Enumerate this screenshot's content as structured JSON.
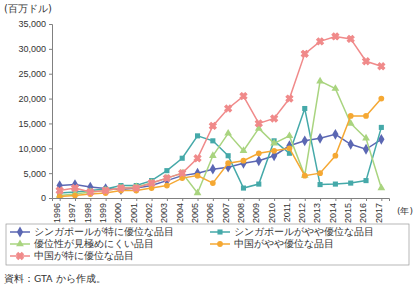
{
  "chart_data": {
    "type": "line",
    "y_label": "(百万ドル)",
    "x_label": "(年)",
    "annotations": [
      "資料：GTA から作成。"
    ],
    "x": [
      1996,
      1997,
      1998,
      1999,
      2000,
      2001,
      2002,
      2003,
      2004,
      2005,
      2006,
      2007,
      2008,
      2009,
      2010,
      2011,
      2012,
      2013,
      2014,
      2015,
      2016,
      2017
    ],
    "xlim": [
      1995.5,
      2017.5
    ],
    "xticks": [
      1996,
      1997,
      1998,
      1999,
      2000,
      2001,
      2002,
      2003,
      2004,
      2005,
      2006,
      2007,
      2008,
      2009,
      2010,
      2011,
      2012,
      2013,
      2014,
      2015,
      2016,
      2017
    ],
    "ylim": [
      0,
      35000
    ],
    "yticks": [
      0,
      {
        "value": 5000,
        "label": "5,000"
      },
      {
        "value": 10000,
        "label": "10,000"
      },
      {
        "value": 15000,
        "label": "15,000"
      },
      {
        "value": 20000,
        "label": "20,000"
      },
      {
        "value": 25000,
        "label": "25,000"
      },
      {
        "value": 30000,
        "label": "30,000"
      },
      {
        "value": 35000,
        "label": "35,000"
      }
    ],
    "grid": false,
    "legend": "bottom",
    "series": [
      {
        "name": "シンガポールが特に優位な品目",
        "color": "#5b67b3",
        "marker": "diamond",
        "values": [
          2500,
          2700,
          2200,
          1900,
          1700,
          2000,
          2500,
          3500,
          4500,
          5000,
          5800,
          6200,
          7000,
          7500,
          8500,
          10500,
          11500,
          12000,
          12800,
          10800,
          9800,
          11800
        ]
      },
      {
        "name": "シンガポールがやや優位な品目",
        "color": "#45a9a9",
        "marker": "square",
        "values": [
          1000,
          1200,
          1500,
          1800,
          2500,
          2500,
          3500,
          5500,
          8000,
          12500,
          11500,
          8500,
          2000,
          2800,
          11500,
          9000,
          18000,
          2700,
          2800,
          3000,
          3500,
          14200
        ]
      },
      {
        "name": "優位性が見極めにくい品目",
        "color": "#a9d47f",
        "marker": "triangle",
        "values": [
          500,
          800,
          1200,
          1500,
          2000,
          2200,
          3000,
          4000,
          5000,
          1000,
          8500,
          13000,
          9500,
          14000,
          11000,
          12500,
          4500,
          23500,
          22000,
          15000,
          12000,
          2000
        ]
      },
      {
        "name": "中国がやや優位な品目",
        "color": "#f5a833",
        "marker": "circle",
        "values": [
          300,
          500,
          800,
          1000,
          1500,
          1500,
          2000,
          2500,
          4000,
          4500,
          3000,
          7000,
          7500,
          9000,
          9500,
          10000,
          4500,
          5000,
          8500,
          16500,
          16500,
          20000
        ]
      },
      {
        "name": "中国が特に優位な品目",
        "color": "#f08a8a",
        "marker": "x",
        "values": [
          1500,
          2000,
          1200,
          1500,
          2000,
          2000,
          3000,
          4000,
          5000,
          8000,
          14500,
          18000,
          20500,
          15000,
          16000,
          20000,
          29000,
          31500,
          32500,
          32000,
          27500,
          26500
        ]
      }
    ]
  }
}
